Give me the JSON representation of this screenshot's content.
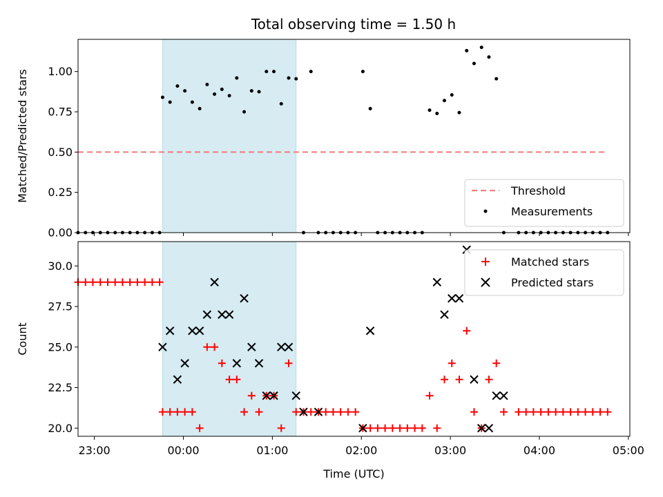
{
  "chart_data": [
    {
      "type": "scatter",
      "title": "Total observing time = 1.50 h",
      "xlabel": "",
      "ylabel": "Matched/Predicted stars",
      "x_unit": "UTC time",
      "xlim": [
        "22:49",
        "05:01"
      ],
      "ylim": [
        0,
        1.2
      ],
      "yticks": [
        "0.00",
        "0.25",
        "0.50",
        "0.75",
        "1.00"
      ],
      "ytick_values": [
        0,
        0.25,
        0.5,
        0.75,
        1.0
      ],
      "shaded_interval": [
        "23:46",
        "01:16"
      ],
      "shade_color": "#add8e6",
      "legend_position": "bottom-right",
      "threshold": {
        "name": "Threshold",
        "value": 0.5,
        "x_range": [
          "22:49",
          "04:44"
        ],
        "color": "#f08080"
      },
      "series": [
        {
          "name": "Measurements",
          "color": "#000000",
          "x": [
            "22:49",
            "22:54",
            "22:59",
            "23:04",
            "23:09",
            "23:14",
            "23:19",
            "23:24",
            "23:29",
            "23:34",
            "23:39",
            "23:44",
            "23:46",
            "23:51",
            "23:56",
            "00:01",
            "00:06",
            "00:11",
            "00:16",
            "00:21",
            "00:26",
            "00:31",
            "00:36",
            "00:41",
            "00:46",
            "00:51",
            "00:56",
            "01:01",
            "01:06",
            "01:11",
            "01:16",
            "01:21",
            "01:26",
            "01:31",
            "01:36",
            "01:41",
            "01:46",
            "01:51",
            "01:56",
            "02:01",
            "02:06",
            "02:11",
            "02:16",
            "02:21",
            "02:26",
            "02:31",
            "02:36",
            "02:41",
            "02:46",
            "02:51",
            "02:56",
            "03:01",
            "03:06",
            "03:11",
            "03:16",
            "03:21",
            "03:26",
            "03:31",
            "03:36",
            "03:46",
            "03:51",
            "03:56",
            "04:01",
            "04:06",
            "04:11",
            "04:16",
            "04:21",
            "04:26",
            "04:31",
            "04:36",
            "04:41",
            "04:46"
          ],
          "y": [
            0,
            0,
            0,
            0,
            0,
            0,
            0,
            0,
            0,
            0,
            0,
            0,
            0.84,
            0.81,
            0.91,
            0.88,
            0.81,
            0.77,
            0.92,
            0.86,
            0.89,
            0.85,
            0.96,
            0.75,
            0.88,
            0.875,
            1.0,
            1.0,
            0.8,
            0.96,
            0.955,
            0,
            1.0,
            0,
            0,
            0,
            0,
            0,
            0,
            1.0,
            0.77,
            0,
            0,
            0,
            0,
            0,
            0,
            0,
            0.76,
            0.74,
            0.82,
            0.855,
            0.745,
            1.13,
            1.05,
            1.15,
            1.09,
            0.955,
            0,
            0,
            0,
            0,
            0,
            0,
            0,
            0,
            0,
            0,
            0,
            0,
            0,
            0
          ]
        }
      ]
    },
    {
      "type": "scatter",
      "title": "",
      "xlabel": "Time (UTC)",
      "ylabel": "Count",
      "x_unit": "UTC time",
      "xlim": [
        "22:49",
        "05:01"
      ],
      "ylim": [
        19.5,
        31.5
      ],
      "xticks": [
        "23:00",
        "00:00",
        "01:00",
        "02:00",
        "03:00",
        "04:00",
        "05:00"
      ],
      "yticks": [
        "20.0",
        "22.5",
        "25.0",
        "27.5",
        "30.0"
      ],
      "ytick_values": [
        20,
        22.5,
        25,
        27.5,
        30
      ],
      "shaded_interval": [
        "23:46",
        "01:16"
      ],
      "shade_color": "#add8e6",
      "legend_position": "top-right",
      "series": [
        {
          "name": "Matched stars",
          "marker": "plus",
          "color": "#ff0000",
          "x": [
            "22:49",
            "22:54",
            "22:59",
            "23:04",
            "23:09",
            "23:14",
            "23:19",
            "23:24",
            "23:29",
            "23:34",
            "23:39",
            "23:44",
            "23:46",
            "23:51",
            "23:56",
            "00:01",
            "00:06",
            "00:11",
            "00:16",
            "00:21",
            "00:26",
            "00:31",
            "00:36",
            "00:41",
            "00:46",
            "00:51",
            "00:56",
            "01:01",
            "01:06",
            "01:11",
            "01:16",
            "01:21",
            "01:26",
            "01:31",
            "01:36",
            "01:41",
            "01:46",
            "01:51",
            "01:56",
            "02:01",
            "02:06",
            "02:11",
            "02:16",
            "02:21",
            "02:26",
            "02:31",
            "02:36",
            "02:41",
            "02:46",
            "02:51",
            "02:56",
            "03:01",
            "03:06",
            "03:11",
            "03:16",
            "03:21",
            "03:26",
            "03:31",
            "03:36",
            "03:46",
            "03:51",
            "03:56",
            "04:01",
            "04:06",
            "04:11",
            "04:16",
            "04:21",
            "04:26",
            "04:31",
            "04:36",
            "04:41",
            "04:46"
          ],
          "y": [
            29,
            29,
            29,
            29,
            29,
            29,
            29,
            29,
            29,
            29,
            29,
            29,
            21,
            21,
            21,
            21,
            21,
            20,
            25,
            25,
            24,
            23,
            23,
            21,
            22,
            21,
            22,
            22,
            20,
            24,
            21,
            21,
            21,
            21,
            21,
            21,
            21,
            21,
            21,
            20,
            20,
            20,
            20,
            20,
            20,
            20,
            20,
            20,
            22,
            20,
            23,
            24,
            23,
            26,
            21,
            20,
            23,
            24,
            21,
            21,
            21,
            21,
            21,
            21,
            21,
            21,
            21,
            21,
            21,
            21,
            21,
            21
          ]
        },
        {
          "name": "Predicted stars",
          "marker": "x",
          "color": "#000000",
          "x": [
            "23:46",
            "23:51",
            "23:56",
            "00:01",
            "00:06",
            "00:11",
            "00:16",
            "00:21",
            "00:26",
            "00:31",
            "00:36",
            "00:41",
            "00:46",
            "00:51",
            "00:56",
            "01:01",
            "01:06",
            "01:11",
            "01:16",
            "01:21",
            "01:31",
            "02:01",
            "02:06",
            "02:51",
            "02:56",
            "03:01",
            "03:06",
            "03:11",
            "03:16",
            "03:21",
            "03:26",
            "03:31",
            "03:36"
          ],
          "y": [
            25,
            26,
            23,
            24,
            26,
            26,
            27,
            29,
            27,
            27,
            24,
            28,
            25,
            24,
            22,
            22,
            25,
            25,
            22,
            21,
            21,
            20,
            26,
            29,
            27,
            28,
            28,
            31,
            23,
            20,
            20,
            22,
            22
          ]
        }
      ]
    }
  ]
}
